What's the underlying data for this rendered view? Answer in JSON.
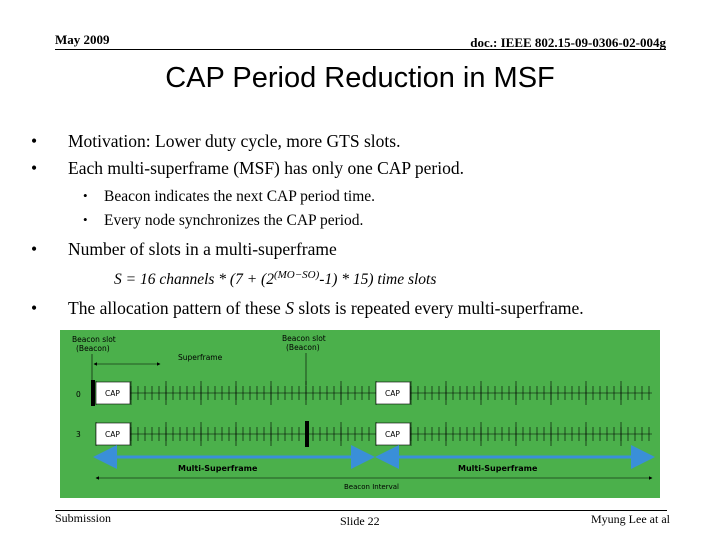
{
  "header": {
    "date": "May 2009",
    "doc_id": "doc.: IEEE 802.15-09-0306-02-004g"
  },
  "title": "CAP Period Reduction in MSF",
  "bullets": {
    "b1": "Motivation: Lower duty cycle, more GTS slots.",
    "b2": "Each multi-superframe (MSF) has only one CAP period.",
    "sub1": "Beacon indicates the next CAP period time.",
    "sub2": "Every node synchronizes the CAP period.",
    "b3": "Number of slots in a multi-superframe",
    "formula_part1": "S = 16 channels * (7 + (2",
    "formula_sup": "(MO−SO)",
    "formula_part2": "-1) * 15) time slots",
    "b4_part1": "The allocation pattern of these ",
    "b4_var": "S",
    "b4_part2": " slots is repeated every multi-superframe.",
    "bullet_char": "•"
  },
  "diagram": {
    "background": "#4bb04b",
    "beacon_slot_label_1": "Beacon slot",
    "beacon_slot_sub_1": "(Beacon)",
    "beacon_slot_label_2": "Beacon slot",
    "beacon_slot_sub_2": "(Beacon)",
    "superframe_label": "Superframe",
    "row_0_label": "0",
    "row_1_label": "3",
    "cap_label": "CAP",
    "msf_label_1": "Multi-Superframe",
    "msf_label_2": "Multi-Superframe",
    "beacon_interval_label": "Beacon Interval",
    "arrow_color": "#3a8fd8"
  },
  "footer": {
    "left": "Submission",
    "center": "Slide 22",
    "right": "Myung Lee at al"
  }
}
